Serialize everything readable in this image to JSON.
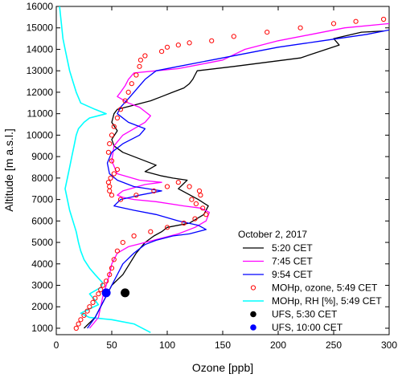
{
  "chart_data": {
    "type": "line",
    "xlabel": "Ozone [ppb]",
    "ylabel": "Altitude [m a.s.l.]",
    "xlim": [
      0,
      300
    ],
    "ylim": [
      700,
      16000
    ],
    "x_ticks": [
      0,
      50,
      100,
      150,
      200,
      250,
      300
    ],
    "y_ticks": [
      1000,
      2000,
      3000,
      4000,
      5000,
      6000,
      7000,
      8000,
      9000,
      10000,
      11000,
      12000,
      13000,
      14000,
      15000,
      16000
    ],
    "x_tick_labels": [
      "0",
      "50",
      "100",
      "150",
      "200",
      "250",
      "300"
    ],
    "y_tick_labels": [
      "1000",
      "2000",
      "3000",
      "4000",
      "5000",
      "6000",
      "7000",
      "8000",
      "9000",
      "10000",
      "11000",
      "12000",
      "13000",
      "14000",
      "15000",
      "16000"
    ],
    "grid": false,
    "legend_position": "bottom-right",
    "legend_title": "October 2, 2017",
    "series": [
      {
        "name": "5:20 CET",
        "kind": "line",
        "color": "#000000",
        "x": [
          25,
          35,
          40,
          45,
          50,
          60,
          66,
          72,
          80,
          88,
          95,
          100,
          120,
          133,
          137,
          128,
          110,
          118,
          105,
          95,
          80,
          90,
          75,
          60,
          52,
          50,
          55,
          50,
          52,
          55,
          70,
          85,
          95,
          105,
          115,
          120,
          123,
          125,
          127,
          160,
          220,
          255,
          250,
          275,
          295
        ],
        "y": [
          1000,
          1500,
          2000,
          2500,
          3000,
          3500,
          4000,
          4500,
          5000,
          5300,
          5500,
          5700,
          5900,
          6300,
          6700,
          7000,
          7500,
          7900,
          8000,
          8100,
          8300,
          8600,
          8900,
          9200,
          9500,
          9800,
          10200,
          10600,
          11000,
          11200,
          11400,
          11600,
          11800,
          12000,
          12200,
          12400,
          12600,
          12800,
          13000,
          13200,
          13600,
          14200,
          14500,
          14800,
          14850
        ]
      },
      {
        "name": "7:45 CET",
        "kind": "line",
        "color": "#ff00ff",
        "x": [
          30,
          38,
          40,
          42,
          45,
          48,
          50,
          55,
          65,
          80,
          95,
          110,
          125,
          135,
          138,
          130,
          115,
          90,
          70,
          60,
          55,
          60,
          80,
          95,
          75,
          55,
          50,
          52,
          60,
          70,
          80,
          85,
          80,
          75,
          65,
          55,
          58,
          62,
          65,
          70,
          90,
          110,
          130,
          150,
          170,
          200,
          230,
          260,
          300
        ],
        "y": [
          1000,
          1500,
          2000,
          2500,
          3000,
          3500,
          4000,
          4500,
          4800,
          5000,
          5200,
          5400,
          5700,
          6000,
          6400,
          6600,
          6700,
          6900,
          7000,
          7100,
          7200,
          7400,
          7700,
          7800,
          7900,
          8200,
          8800,
          9500,
          10000,
          10300,
          10600,
          10900,
          11100,
          11300,
          11500,
          11800,
          12000,
          12300,
          12600,
          12900,
          13000,
          13100,
          13300,
          13500,
          14000,
          14400,
          14700,
          15000,
          15200
        ]
      },
      {
        "name": "9:54 CET",
        "kind": "line",
        "color": "#0000ff",
        "x": [
          28,
          35,
          40,
          45,
          50,
          55,
          60,
          70,
          80,
          90,
          105,
          120,
          135,
          128,
          110,
          90,
          70,
          52,
          58,
          75,
          95,
          70,
          55,
          48,
          46,
          50,
          60,
          75,
          80,
          65,
          55,
          58,
          65,
          70,
          75,
          80,
          90,
          110,
          140,
          170,
          200,
          240,
          280,
          300
        ],
        "y": [
          1000,
          1500,
          2000,
          2500,
          3000,
          3500,
          4000,
          4500,
          4900,
          5100,
          5300,
          5400,
          5600,
          5800,
          6000,
          6300,
          6500,
          6700,
          7000,
          7200,
          7400,
          7600,
          7900,
          8200,
          8700,
          9200,
          9600,
          10000,
          10300,
          10600,
          11000,
          11300,
          11700,
          12000,
          12300,
          12600,
          13000,
          13200,
          13500,
          13800,
          14100,
          14400,
          14700,
          14900
        ]
      },
      {
        "name": "MOHp, ozone, 5:49 CET",
        "kind": "points",
        "color": "#ff0000",
        "x": [
          18,
          20,
          22,
          25,
          28,
          30,
          33,
          35,
          38,
          40,
          42,
          45,
          48,
          50,
          52,
          55,
          60,
          70,
          85,
          100,
          115,
          125,
          135,
          132,
          126,
          122,
          130,
          129,
          120,
          110,
          100,
          88,
          72,
          58,
          50,
          48,
          48,
          47,
          49,
          52,
          55,
          50,
          47,
          48,
          50,
          52,
          55,
          58,
          62,
          65,
          68,
          72,
          75,
          76,
          80,
          95,
          100,
          110,
          120,
          140,
          160,
          190,
          220,
          250,
          270,
          295
        ],
        "y": [
          1000,
          1200,
          1400,
          1600,
          1800,
          2000,
          2200,
          2400,
          2600,
          2800,
          3000,
          3200,
          3500,
          3800,
          4200,
          4600,
          5000,
          5300,
          5500,
          5700,
          5900,
          6100,
          6300,
          6600,
          6800,
          7000,
          7200,
          7400,
          7600,
          7800,
          7600,
          7400,
          7200,
          7000,
          7200,
          7400,
          7600,
          7800,
          8000,
          8200,
          8400,
          8800,
          9200,
          9600,
          10000,
          10400,
          10800,
          11200,
          11600,
          12000,
          12400,
          12800,
          13200,
          13500,
          13700,
          13900,
          14100,
          14200,
          14300,
          14400,
          14600,
          14800,
          15000,
          15200,
          15300,
          15400
        ]
      },
      {
        "name": "MOHp, RH [%], 5:49 CET",
        "kind": "line",
        "color": "#00ffff",
        "x": [
          85,
          70,
          50,
          30,
          22,
          30,
          38,
          35,
          30,
          40,
          42,
          35,
          30,
          25,
          22,
          20,
          18,
          15,
          12,
          10,
          8,
          10,
          12,
          14,
          16,
          18,
          20,
          25,
          30,
          45,
          35,
          22,
          18,
          15,
          12,
          10,
          8,
          6,
          5,
          4,
          3
        ],
        "y": [
          800,
          1200,
          1400,
          1500,
          1700,
          1900,
          2100,
          2300,
          2600,
          2900,
          3100,
          3500,
          3800,
          4200,
          4600,
          5000,
          5500,
          6000,
          6500,
          7000,
          7500,
          8000,
          8500,
          9000,
          9500,
          10000,
          10300,
          10600,
          10800,
          11000,
          11200,
          11500,
          12000,
          12500,
          13000,
          13500,
          14000,
          14500,
          15000,
          15500,
          16000
        ]
      },
      {
        "name": "UFS, 5:30 CET",
        "kind": "marker",
        "color": "#000000",
        "x": [
          62
        ],
        "y": [
          2650
        ]
      },
      {
        "name": "UFS, 10:00 CET",
        "kind": "marker",
        "color": "#0000ff",
        "x": [
          45
        ],
        "y": [
          2650
        ]
      }
    ]
  }
}
